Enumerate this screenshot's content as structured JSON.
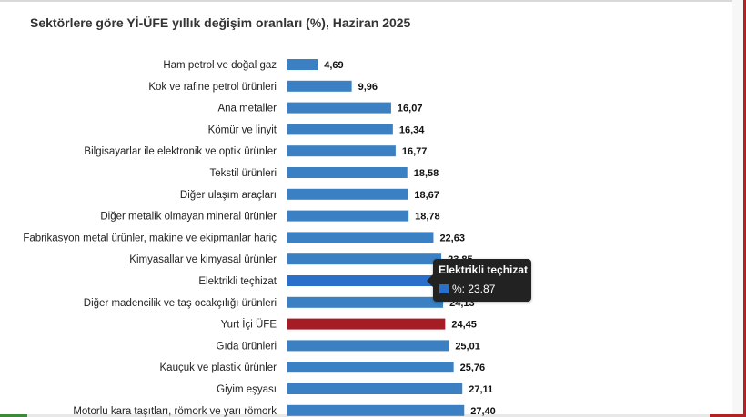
{
  "chart_data": {
    "type": "bar",
    "orientation": "horizontal",
    "title": "Sektörlere göre Yİ-ÜFE yıllık değişim oranları (%), Haziran 2025",
    "categories": [
      "Ham petrol ve doğal gaz",
      "Kok ve rafine petrol ürünleri",
      "Ana metaller",
      "Kömür ve linyit",
      "Bilgisayarlar ile elektronik ve optik ürünler",
      "Tekstil ürünleri",
      "Diğer ulaşım araçları",
      "Diğer metalik olmayan mineral ürünler",
      "Fabrikasyon metal ürünler, makine ve ekipmanlar hariç",
      "Kimyasallar ve kimyasal ürünler",
      "Elektrikli teçhizat",
      "Diğer madencilik ve taş ocakçılığı ürünleri",
      "Yurt İçi ÜFE",
      "Gıda ürünleri",
      "Kauçuk ve plastik ürünler",
      "Giyim eşyası",
      "Motorlu kara taşıtları, römork ve yarı römork"
    ],
    "values": [
      4.69,
      9.96,
      16.07,
      16.34,
      16.77,
      18.58,
      18.67,
      18.78,
      22.63,
      23.85,
      23.87,
      24.13,
      24.45,
      25.01,
      25.76,
      27.11,
      27.4
    ],
    "labels": [
      "4,69",
      "9,96",
      "16,07",
      "16,34",
      "16,77",
      "18,58",
      "18,67",
      "18,78",
      "22,63",
      "23,85",
      "23,87",
      "24,13",
      "24,45",
      "25,01",
      "25,76",
      "27,11",
      "27,40"
    ],
    "highlight_index": 12,
    "hover_index": 10,
    "colors": {
      "bar": "#3a80c2",
      "highlight": "#a61c24",
      "hover": "#2a6fc9"
    },
    "xlim": [
      0,
      28
    ],
    "grid": false,
    "legend": "none"
  },
  "tooltip": {
    "title": "Elektrikli teçhizat",
    "text": "%: 23.87"
  }
}
